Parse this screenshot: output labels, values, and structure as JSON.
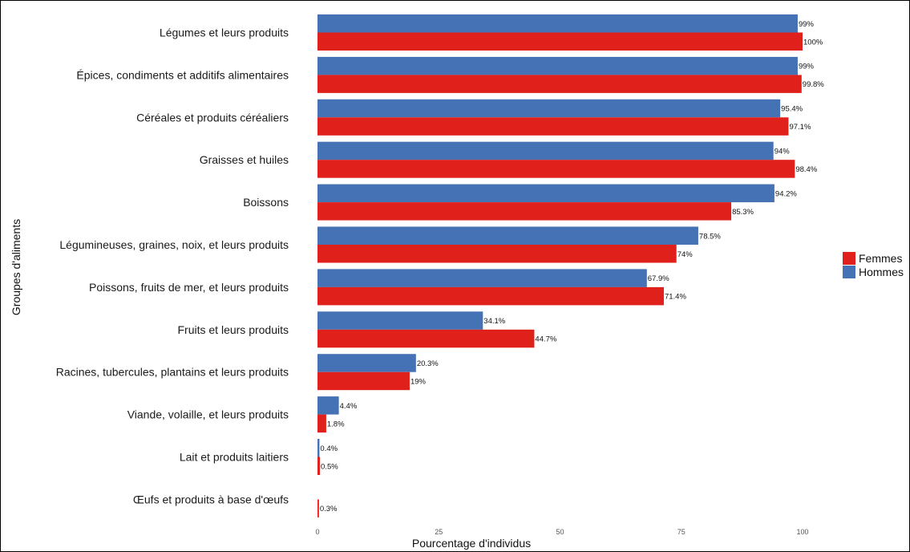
{
  "chart_data": {
    "type": "bar",
    "orientation": "horizontal",
    "xlabel": "Pourcentage d'individus",
    "ylabel": "Groupes d'aliments",
    "xlim": [
      0,
      100
    ],
    "x_ticks": [
      "0",
      "25",
      "50",
      "75",
      "100"
    ],
    "grid": false,
    "legend_position": "right",
    "categories": [
      "Légumes et leurs produits",
      "Épices, condiments et additifs alimentaires",
      "Céréales et produits céréaliers",
      "Graisses et huiles",
      "Boissons",
      "Légumineuses, graines, noix, et leurs produits",
      "Poissons, fruits de mer, et leurs produits",
      "Fruits et leurs produits",
      "Racines, tubercules, plantains et leurs produits",
      "Viande, volaille, et leurs produits",
      "Lait et produits laitiers",
      "Œufs et produits à base d'œufs"
    ],
    "series": [
      {
        "name": "Hommes",
        "color": "#4472b4",
        "values": [
          99,
          99,
          95.4,
          94,
          94.2,
          78.5,
          67.9,
          34.1,
          20.3,
          4.4,
          0.4,
          null
        ],
        "labels": [
          "99%",
          "99%",
          "95.4%",
          "94%",
          "94.2%",
          "78.5%",
          "67.9%",
          "34.1%",
          "20.3%",
          "4.4%",
          "0.4%",
          ""
        ]
      },
      {
        "name": "Femmes",
        "color": "#e0201b",
        "values": [
          100,
          99.8,
          97.1,
          98.4,
          85.3,
          74,
          71.4,
          44.7,
          19,
          1.8,
          0.5,
          0.3
        ],
        "labels": [
          "100%",
          "99.8%",
          "97.1%",
          "98.4%",
          "85.3%",
          "74%",
          "71.4%",
          "44.7%",
          "19%",
          "1.8%",
          "0.5%",
          "0.3%"
        ]
      }
    ],
    "legend": [
      "Femmes",
      "Hommes"
    ]
  }
}
